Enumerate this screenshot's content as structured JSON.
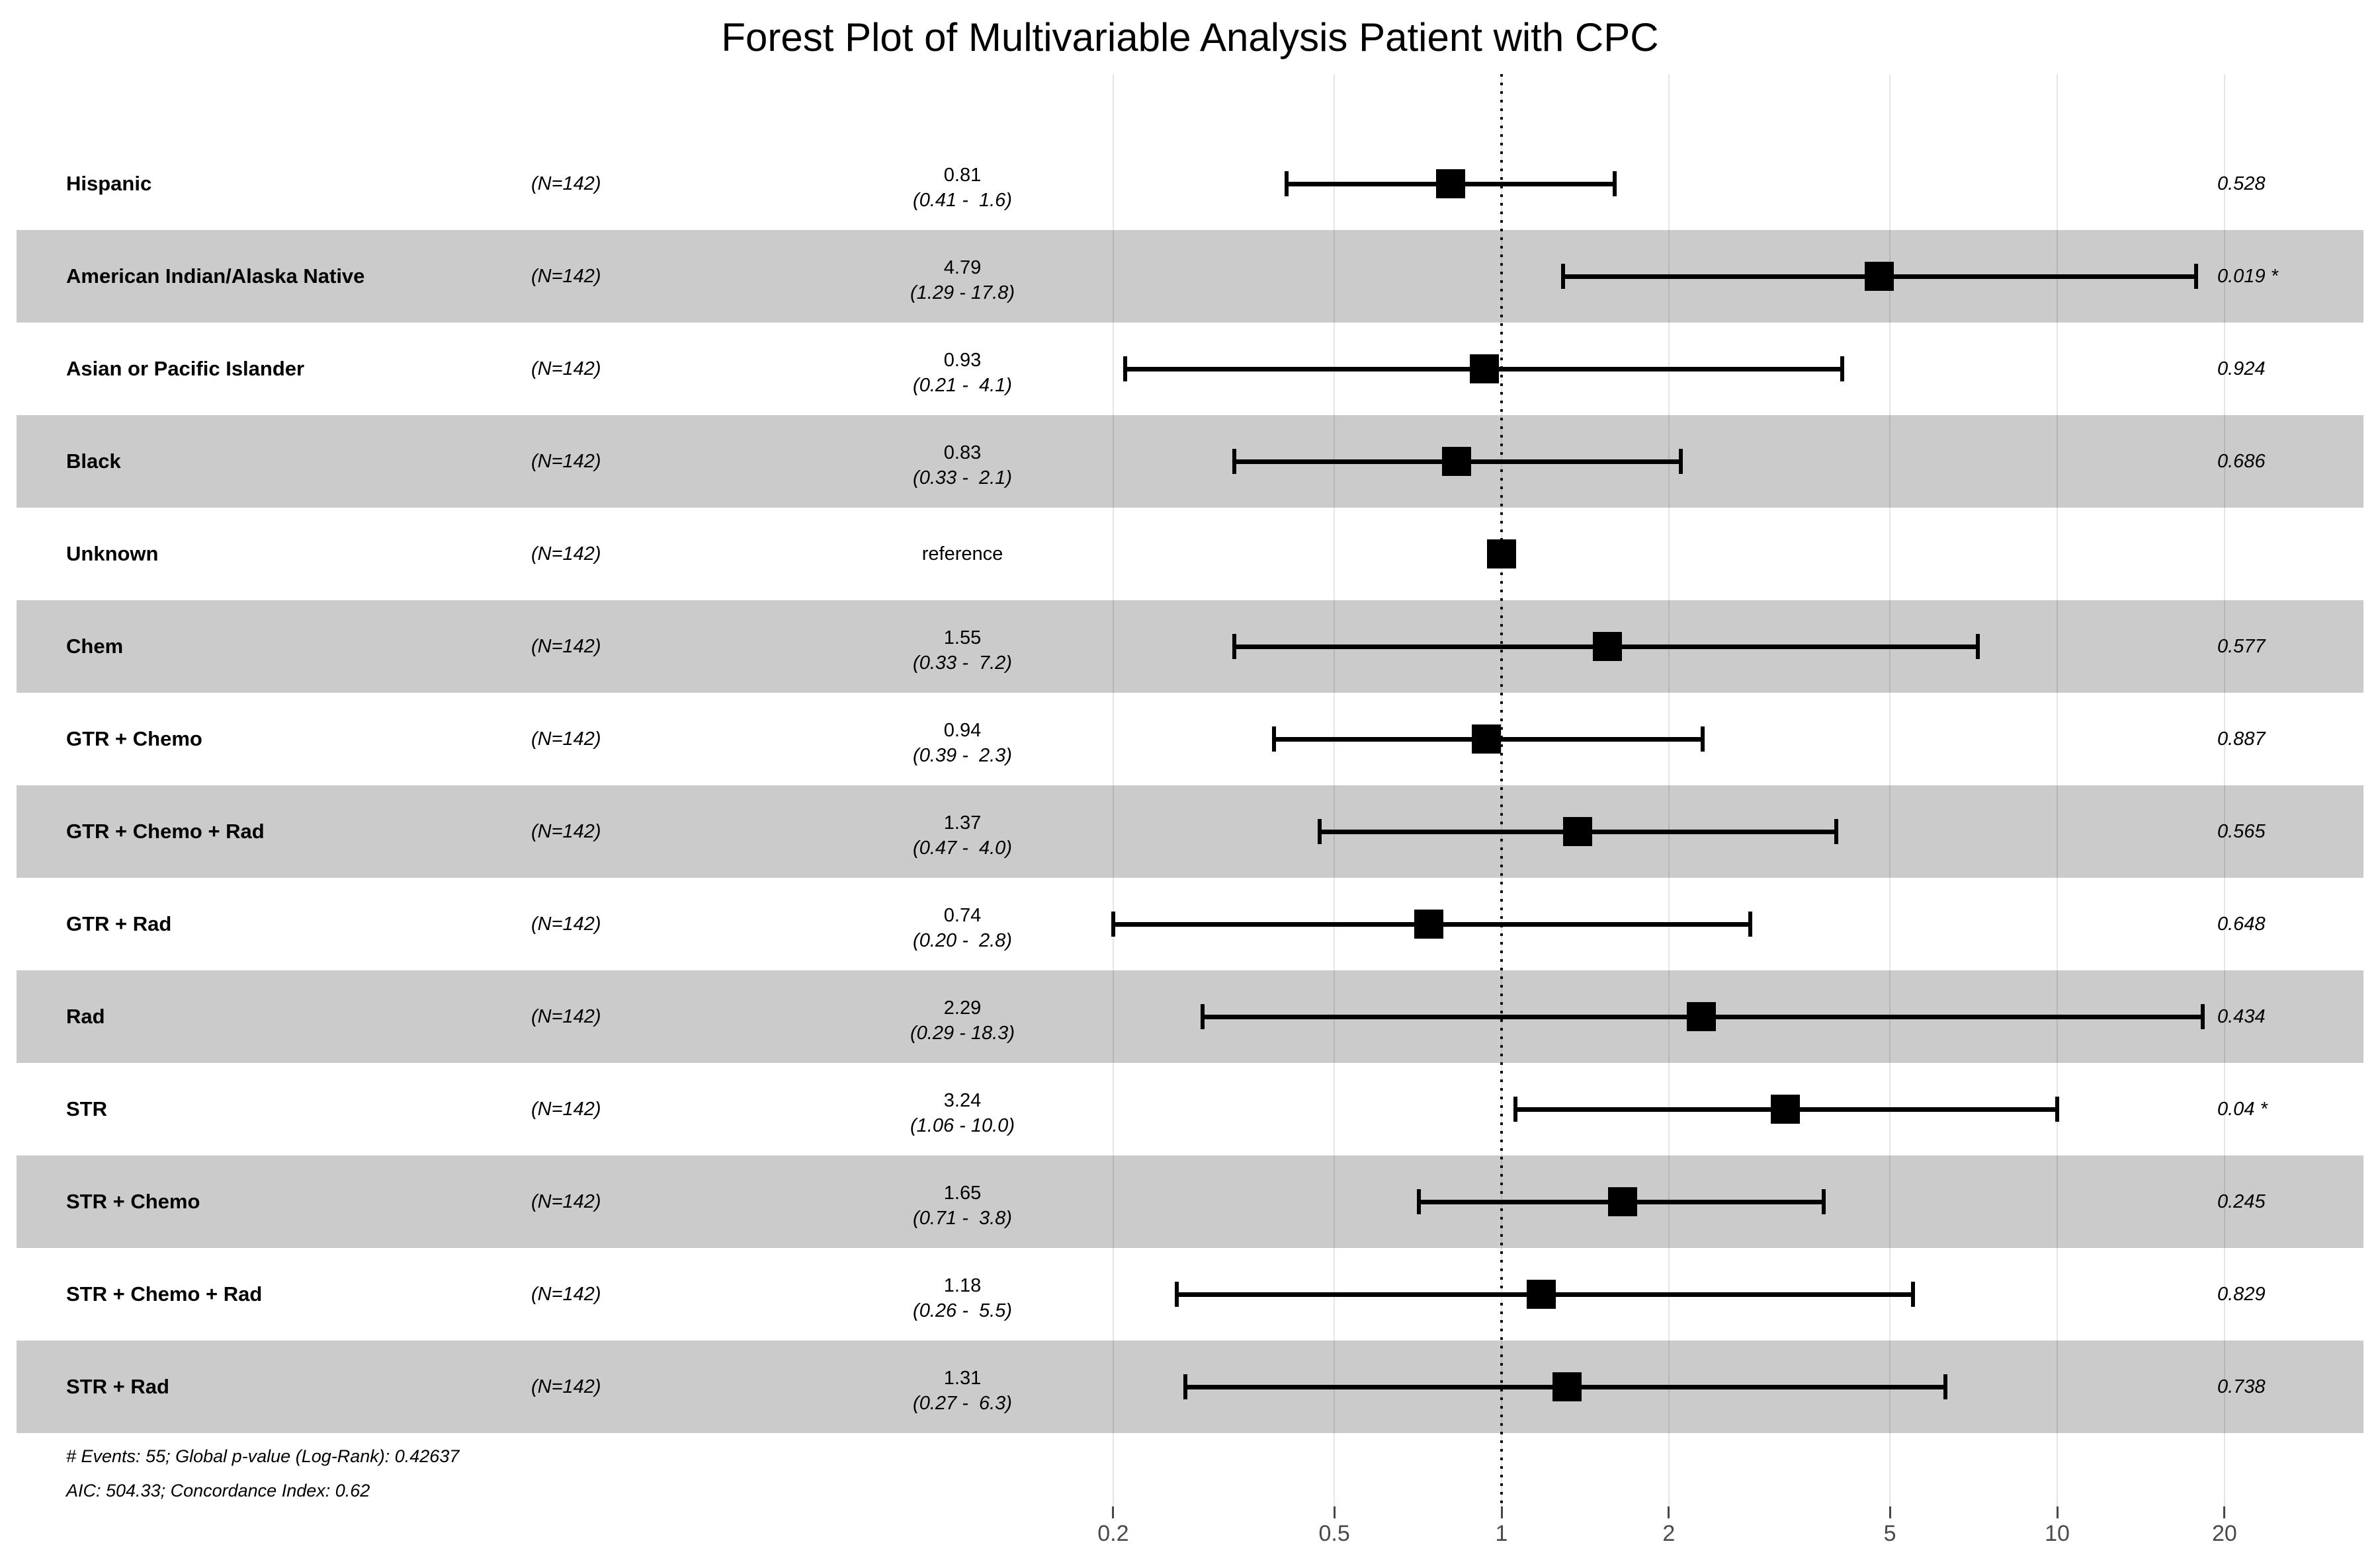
{
  "title": "Forest Plot of Multivariable Analysis Patient with CPC",
  "footer": {
    "line1": "# Events: 55; Global p-value (Log-Rank): 0.42637",
    "line2": "AIC: 504.33; Concordance Index: 0.62"
  },
  "colors": {
    "stripe": "#cbcbcb",
    "marker": "#000000",
    "grid": "rgba(0,0,0,0.10)",
    "reference_line": "#111111",
    "tick_label": "#4a4a4a",
    "text": "#000000"
  },
  "chart_data": {
    "type": "forest",
    "title": "Forest Plot of Multivariable Analysis Patient with CPC",
    "x_scale": "log10",
    "xlim": [
      0.2,
      20
    ],
    "axis_ticks": [
      "0.2",
      "0.5",
      "1",
      "2",
      "5",
      "10",
      "20"
    ],
    "axis_tick_values": [
      0.2,
      0.5,
      1,
      2,
      5,
      10,
      20
    ],
    "reference_value": 1,
    "grid": true,
    "rows": [
      {
        "label": "Hispanic",
        "n": "(N=142)",
        "estimate": 0.81,
        "ci_low": 0.41,
        "ci_high": 1.6,
        "estimate_text": "0.81",
        "ci_text": "(0.41 -  1.6)",
        "p_value": "0.528",
        "reference": false,
        "shaded": false
      },
      {
        "label": "American Indian/Alaska Native",
        "n": "(N=142)",
        "estimate": 4.79,
        "ci_low": 1.29,
        "ci_high": 17.8,
        "estimate_text": "4.79",
        "ci_text": "(1.29 - 17.8)",
        "p_value": "0.019 *",
        "reference": false,
        "shaded": true
      },
      {
        "label": "Asian or Pacific Islander",
        "n": "(N=142)",
        "estimate": 0.93,
        "ci_low": 0.21,
        "ci_high": 4.1,
        "estimate_text": "0.93",
        "ci_text": "(0.21 -  4.1)",
        "p_value": "0.924",
        "reference": false,
        "shaded": false
      },
      {
        "label": "Black",
        "n": "(N=142)",
        "estimate": 0.83,
        "ci_low": 0.33,
        "ci_high": 2.1,
        "estimate_text": "0.83",
        "ci_text": "(0.33 -  2.1)",
        "p_value": "0.686",
        "reference": false,
        "shaded": true
      },
      {
        "label": "Unknown",
        "n": "(N=142)",
        "estimate": 1.0,
        "ci_low": null,
        "ci_high": null,
        "estimate_text": "reference",
        "ci_text": "",
        "p_value": "",
        "reference": true,
        "shaded": false
      },
      {
        "label": "Chem",
        "n": "(N=142)",
        "estimate": 1.55,
        "ci_low": 0.33,
        "ci_high": 7.2,
        "estimate_text": "1.55",
        "ci_text": "(0.33 -  7.2)",
        "p_value": "0.577",
        "reference": false,
        "shaded": true
      },
      {
        "label": "GTR + Chemo",
        "n": "(N=142)",
        "estimate": 0.94,
        "ci_low": 0.39,
        "ci_high": 2.3,
        "estimate_text": "0.94",
        "ci_text": "(0.39 -  2.3)",
        "p_value": "0.887",
        "reference": false,
        "shaded": false
      },
      {
        "label": "GTR + Chemo + Rad",
        "n": "(N=142)",
        "estimate": 1.37,
        "ci_low": 0.47,
        "ci_high": 4.0,
        "estimate_text": "1.37",
        "ci_text": "(0.47 -  4.0)",
        "p_value": "0.565",
        "reference": false,
        "shaded": true
      },
      {
        "label": "GTR + Rad",
        "n": "(N=142)",
        "estimate": 0.74,
        "ci_low": 0.2,
        "ci_high": 2.8,
        "estimate_text": "0.74",
        "ci_text": "(0.20 -  2.8)",
        "p_value": "0.648",
        "reference": false,
        "shaded": false
      },
      {
        "label": "Rad",
        "n": "(N=142)",
        "estimate": 2.29,
        "ci_low": 0.29,
        "ci_high": 18.3,
        "estimate_text": "2.29",
        "ci_text": "(0.29 - 18.3)",
        "p_value": "0.434",
        "reference": false,
        "shaded": true
      },
      {
        "label": "STR",
        "n": "(N=142)",
        "estimate": 3.24,
        "ci_low": 1.06,
        "ci_high": 10.0,
        "estimate_text": "3.24",
        "ci_text": "(1.06 - 10.0)",
        "p_value": "0.04 *",
        "reference": false,
        "shaded": false
      },
      {
        "label": "STR + Chemo",
        "n": "(N=142)",
        "estimate": 1.65,
        "ci_low": 0.71,
        "ci_high": 3.8,
        "estimate_text": "1.65",
        "ci_text": "(0.71 -  3.8)",
        "p_value": "0.245",
        "reference": false,
        "shaded": true
      },
      {
        "label": "STR + Chemo + Rad",
        "n": "(N=142)",
        "estimate": 1.18,
        "ci_low": 0.26,
        "ci_high": 5.5,
        "estimate_text": "1.18",
        "ci_text": "(0.26 -  5.5)",
        "p_value": "0.829",
        "reference": false,
        "shaded": false
      },
      {
        "label": "STR + Rad",
        "n": "(N=142)",
        "estimate": 1.31,
        "ci_low": 0.27,
        "ci_high": 6.3,
        "estimate_text": "1.31",
        "ci_text": "(0.27 -  6.3)",
        "p_value": "0.738",
        "reference": false,
        "shaded": true
      }
    ]
  }
}
